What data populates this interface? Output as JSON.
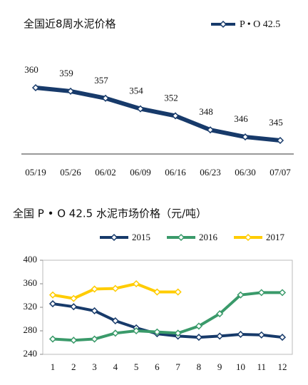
{
  "charts": [
    {
      "chart_data": {
        "type": "line",
        "title": "全国近8周水泥价格",
        "categories": [
          "05/19",
          "05/26",
          "06/02",
          "06/09",
          "06/16",
          "06/23",
          "06/30",
          "07/07"
        ],
        "series": [
          {
            "name": "P • O 42.5",
            "color": "#173a6a",
            "values": [
              360,
              359,
              357,
              354,
              352,
              348,
              346,
              345
            ]
          }
        ]
      }
    },
    {
      "chart_data": {
        "type": "line",
        "title": "全国 P • O 42.5 水泥市场价格（元/吨）",
        "categories": [
          "1",
          "2",
          "3",
          "4",
          "5",
          "6",
          "7",
          "8",
          "9",
          "10",
          "11",
          "12"
        ],
        "ylim": [
          240,
          400
        ],
        "yticks": [
          240,
          280,
          320,
          360,
          400
        ],
        "series": [
          {
            "name": "2015",
            "color": "#173a6a",
            "values": [
              326,
              321,
              314,
              297,
              285,
              275,
              271,
              269,
              271,
              274,
              273,
              269
            ]
          },
          {
            "name": "2016",
            "color": "#3a9a6a",
            "values": [
              266,
              264,
              266,
              276,
              280,
              278,
              276,
              288,
              309,
              341,
              345,
              345
            ]
          },
          {
            "name": "2017",
            "color": "#ffcc00",
            "values": [
              341,
              335,
              351,
              352,
              360,
              346,
              346,
              null,
              null,
              null,
              null,
              null
            ]
          }
        ]
      }
    }
  ]
}
